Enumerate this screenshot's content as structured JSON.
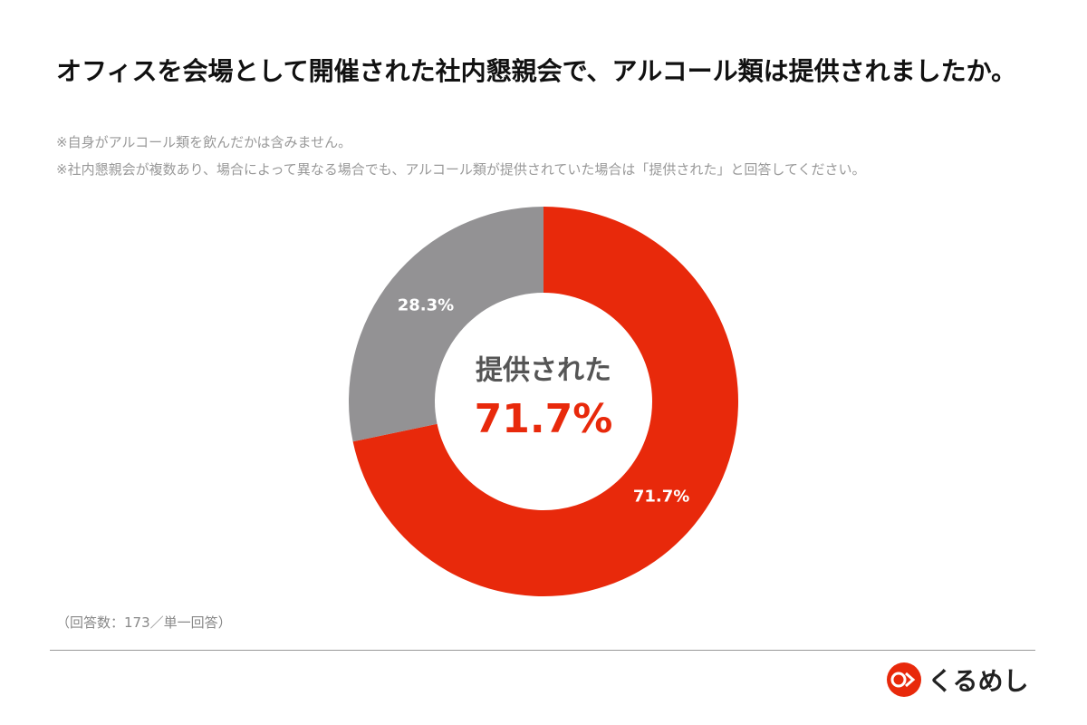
{
  "chart_data": {
    "type": "pie",
    "title": "オフィスを会場として開催された社内懇親会で、アルコール類は提供されましたか。",
    "notes": [
      "※自身がアルコール類を飲んだかは含みません。",
      "※社内懇親会が複数あり、場合によって異なる場合でも、アルコール類が提供されていた場合は「提供された」と回答してください。"
    ],
    "categories": [
      "提供された",
      null
    ],
    "values": [
      71.7,
      28.3
    ],
    "value_labels": [
      "71.7%",
      "28.3%"
    ],
    "colors": [
      "#e8290b",
      "#939294"
    ],
    "footnote": "（回答数：173／単一回答）"
  },
  "brand": "くるめし"
}
